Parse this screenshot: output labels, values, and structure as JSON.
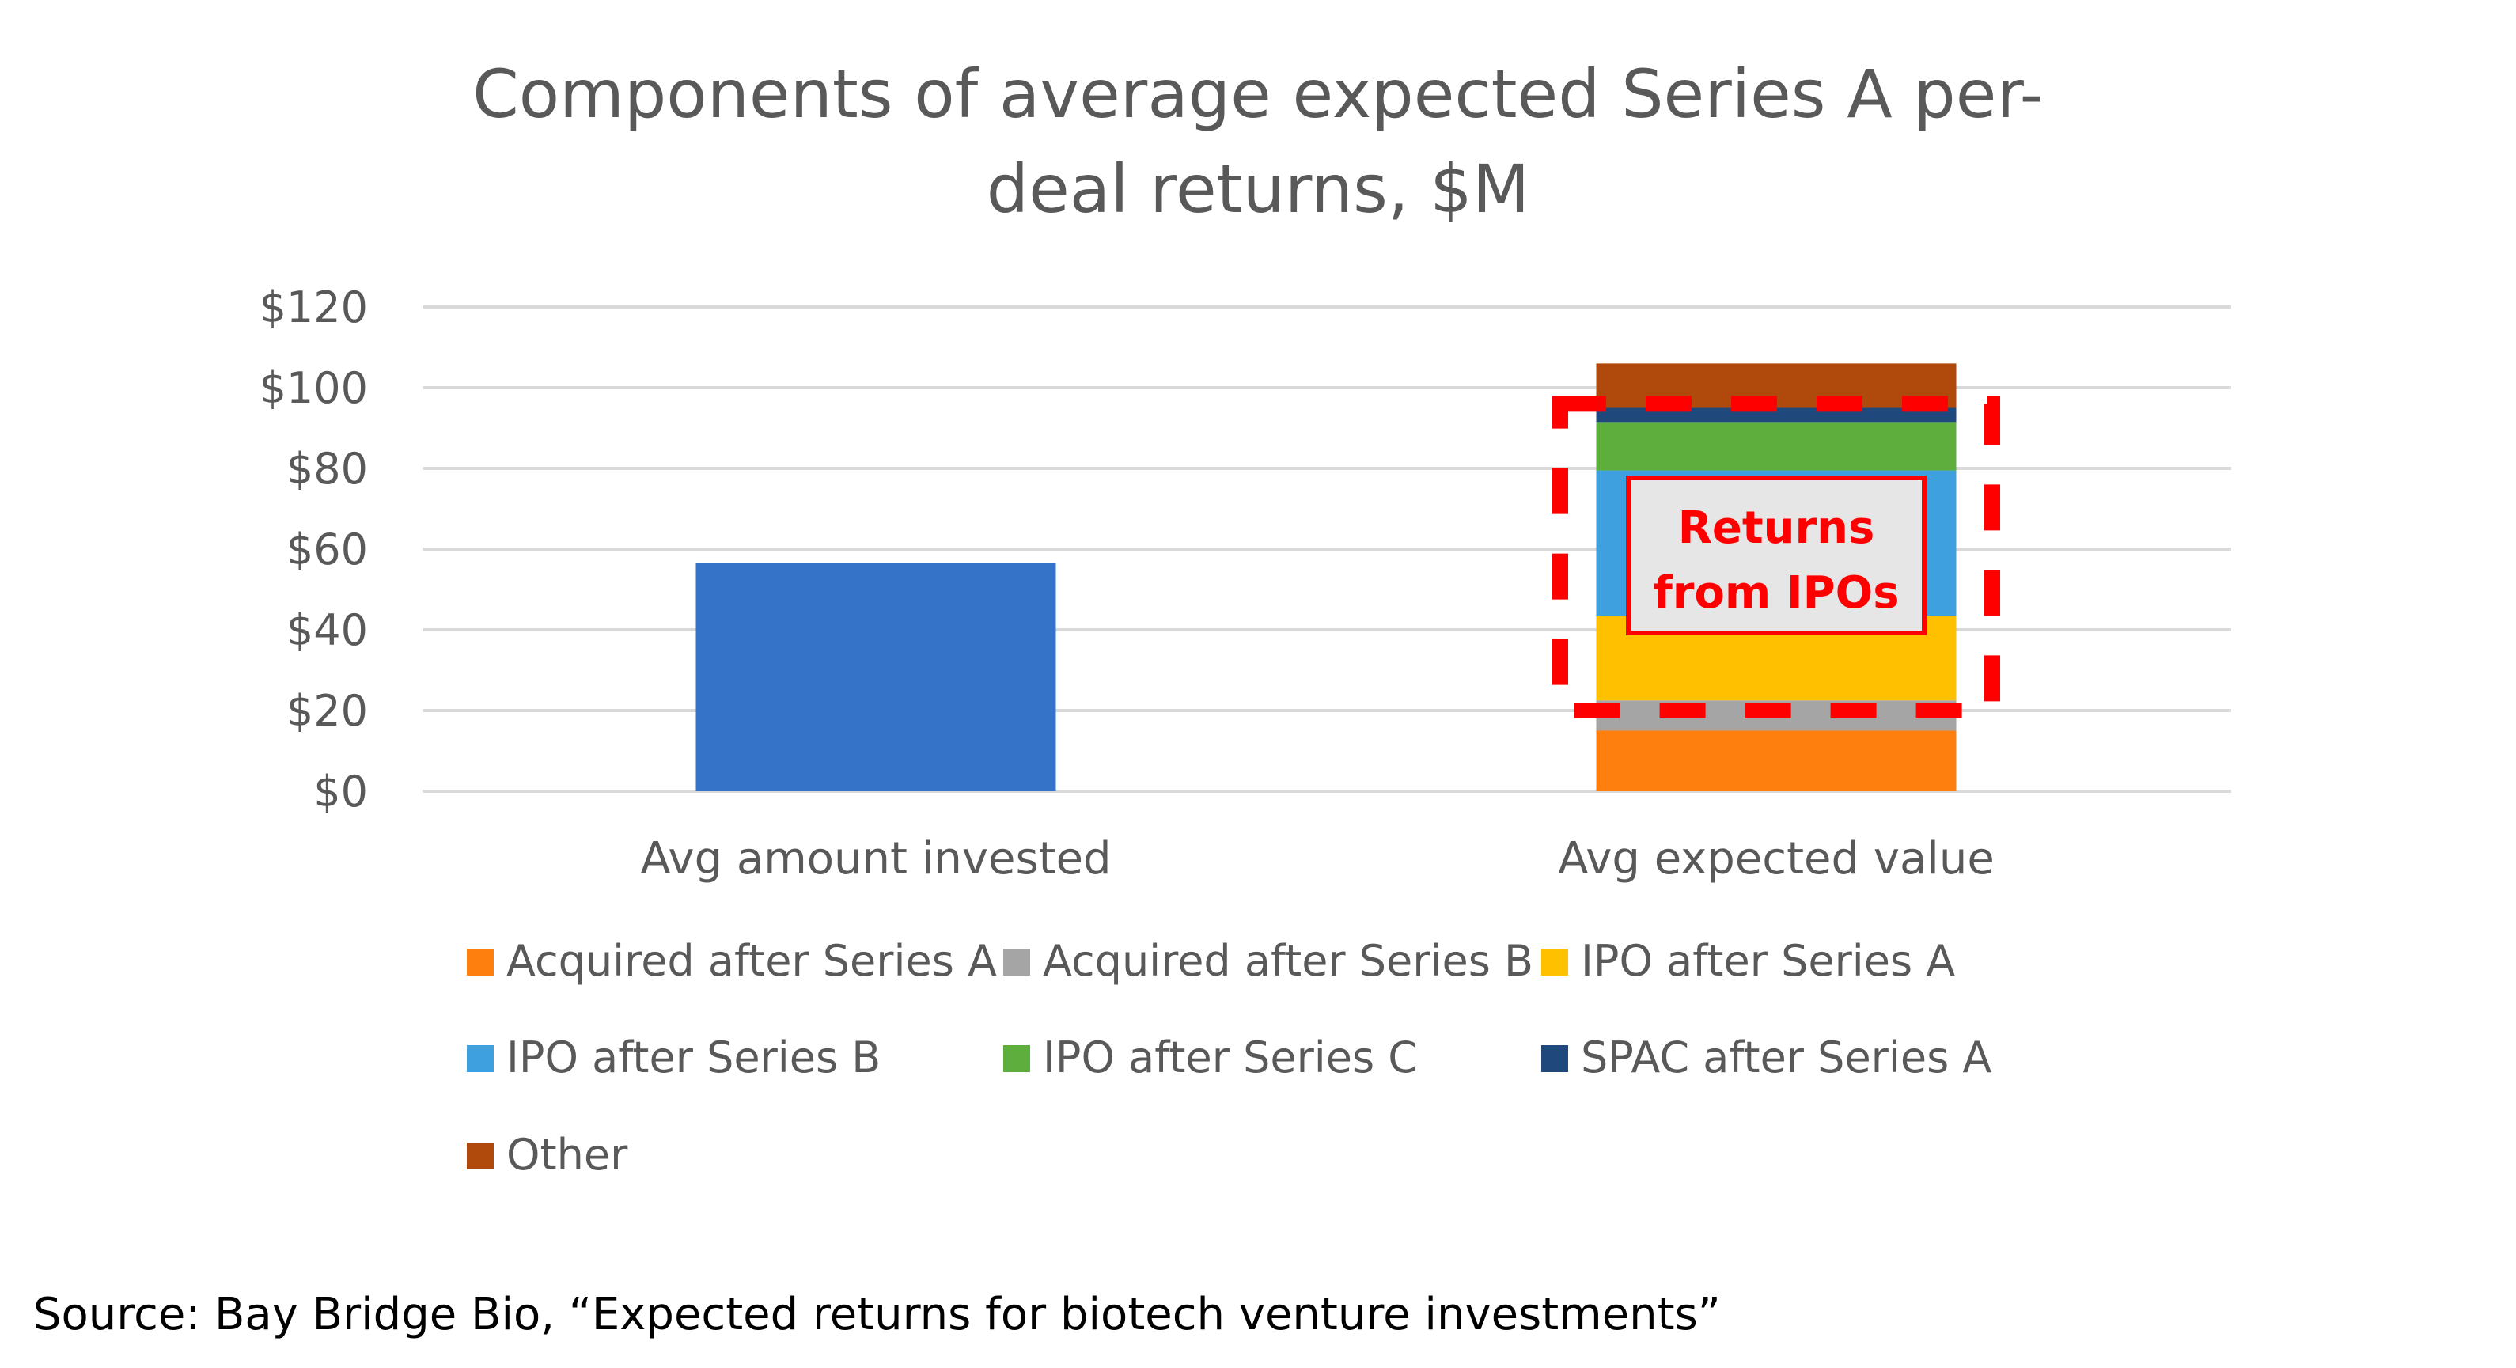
{
  "chart_data": {
    "type": "bar",
    "stacked": true,
    "title": "Components of average expected Series A per-deal returns, $M",
    "title_lines": [
      "Components of average expected Series A per-",
      "deal returns, $M"
    ],
    "xlabel": "",
    "ylabel": "",
    "ylim": [
      0,
      120
    ],
    "y_ticks": [
      0,
      20,
      40,
      60,
      80,
      100,
      120
    ],
    "y_tick_labels": [
      "$0",
      "$20",
      "$40",
      "$60",
      "$80",
      "$100",
      "$120"
    ],
    "categories": [
      "Avg amount invested",
      "Avg expected value"
    ],
    "grid": true,
    "legend_position": "bottom",
    "invested_color": "#3473C8",
    "series": [
      {
        "name": "Acquired after Series A",
        "color": "#FF7F0E",
        "values": [
          null,
          15
        ]
      },
      {
        "name": "Acquired after Series B",
        "color": "#A5A5A5",
        "values": [
          null,
          7.5
        ]
      },
      {
        "name": "IPO after Series A",
        "color": "#FFC000",
        "values": [
          null,
          21
        ]
      },
      {
        "name": "IPO after Series B",
        "color": "#3FA0E0",
        "values": [
          null,
          36
        ]
      },
      {
        "name": "IPO after Series C",
        "color": "#5DAE3C",
        "values": [
          null,
          12
        ]
      },
      {
        "name": "SPAC after Series A",
        "color": "#1F497D",
        "values": [
          null,
          3.5
        ]
      },
      {
        "name": "Other",
        "color": "#B04A0C",
        "values": [
          null,
          11
        ]
      }
    ],
    "invested_value": 56.5,
    "annotation": {
      "text_lines": [
        "Returns",
        "from IPOs"
      ],
      "color": "#ff0000",
      "box_fill": "#e6e6e6",
      "spans_y": [
        20,
        96
      ]
    }
  },
  "source": {
    "text": "Source: Bay Bridge Bio, “Expected returns for biotech venture investments”"
  }
}
